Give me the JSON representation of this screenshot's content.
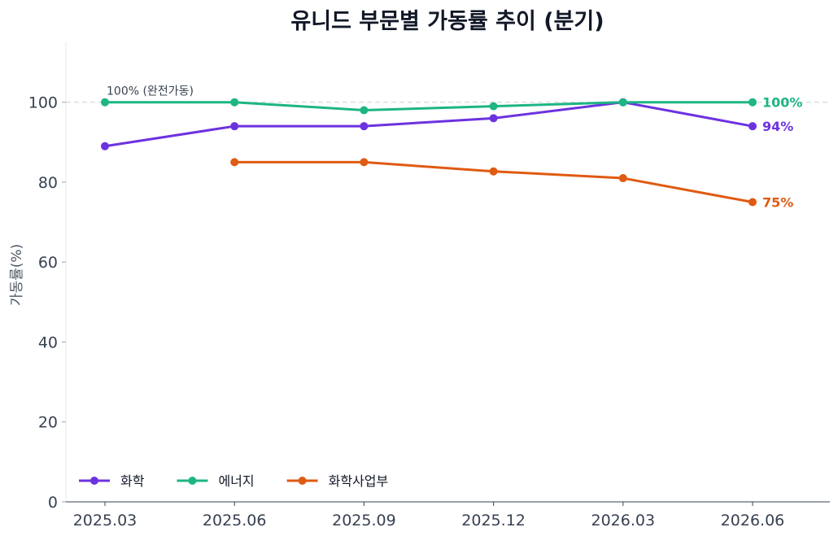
{
  "chart_data": {
    "type": "line",
    "title": "유니드 부문별 가동률 추이 (분기)",
    "xlabel": "",
    "ylabel": "가동률(%)",
    "categories": [
      "2025.03",
      "2025.06",
      "2025.09",
      "2025.12",
      "2026.03",
      "2026.06"
    ],
    "ylim": [
      0,
      115
    ],
    "yticks": [
      0,
      20,
      40,
      60,
      80,
      100
    ],
    "grid": false,
    "legend_position": "bottom-left",
    "reference_line": {
      "y": 100,
      "label": "100% (완전가동)"
    },
    "series": [
      {
        "name": "화학",
        "color": "#6d32e0",
        "values": [
          89,
          94,
          94,
          96,
          100,
          94
        ],
        "end_label": "94%"
      },
      {
        "name": "에너지",
        "color": "#1db584",
        "values": [
          100,
          100,
          98,
          99,
          100,
          100
        ],
        "end_label": "100%"
      },
      {
        "name": "화학사업부",
        "color": "#e05a12",
        "values": [
          null,
          85,
          85,
          82.7,
          81,
          75
        ],
        "end_label": "75%"
      }
    ]
  }
}
